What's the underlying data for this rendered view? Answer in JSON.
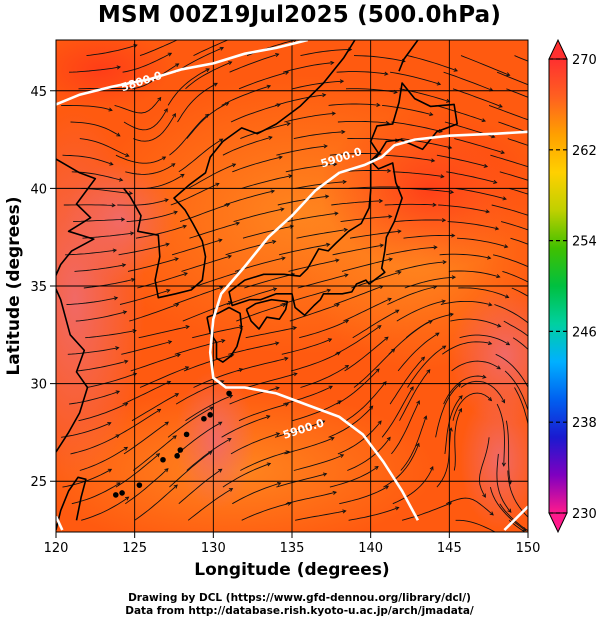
{
  "title": "MSM 00Z19Jul2025 (500.0hPa)",
  "x_axis": {
    "label": "Longitude (degrees)",
    "ticks": [
      120,
      125,
      130,
      135,
      140,
      145,
      150
    ],
    "range": [
      120,
      150
    ]
  },
  "y_axis": {
    "label": "Latitude  (degrees)",
    "ticks": [
      25,
      30,
      35,
      40,
      45
    ],
    "range": [
      22.4,
      47.6
    ]
  },
  "colorbar": {
    "ticks": [
      "270",
      "262",
      "254",
      "246",
      "238",
      "230"
    ],
    "min": 230,
    "max": 270,
    "colors": [
      "#ff1a8c",
      "#8000c0",
      "#1a1ad0",
      "#0060f0",
      "#00b0ff",
      "#00d0a0",
      "#00c040",
      "#40c000",
      "#c0d000",
      "#ffd000",
      "#ffa000",
      "#ff6020",
      "#ff3030"
    ]
  },
  "contours": [
    {
      "label": "5800.0",
      "lon": 125.5,
      "lat": 45.3
    },
    {
      "label": "5900.0",
      "lon": 138.2,
      "lat": 41.4
    },
    {
      "label": "5900.0",
      "lon": 135.8,
      "lat": 27.5
    }
  ],
  "credits": {
    "line1": "Drawing by DCL (https://www.gfd-dennou.org/library/dcl/)",
    "line2": "Data from http://database.rish.kyoto-u.ac.jp/arch/jmadata/"
  },
  "colors": {
    "field_base": "#ff5a10",
    "field_warm": "#ff7a18",
    "field_pink": "#f46464",
    "contour": "#ffffff",
    "coast": "#000000"
  }
}
